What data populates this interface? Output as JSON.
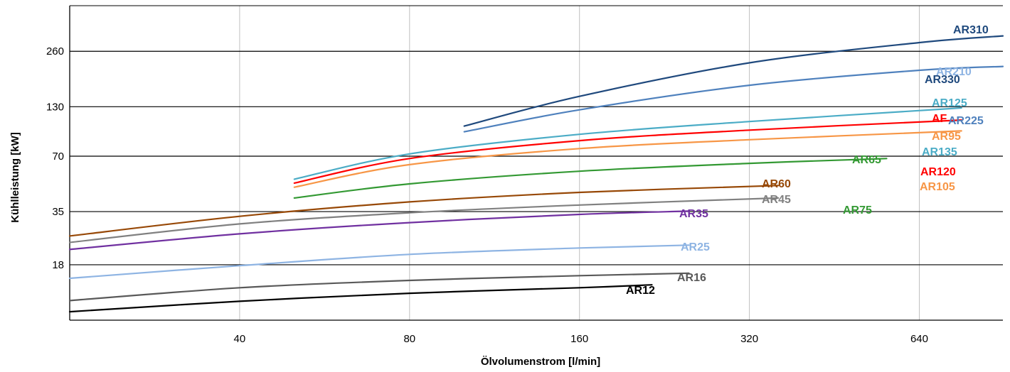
{
  "chart_data": {
    "type": "line",
    "title": "",
    "xlabel": "Ölvolumenstrom [l/min]",
    "ylabel": "Kühlleistung [kW]",
    "x_scale": "log2",
    "y_scale": "log2",
    "xlim": [
      20,
      900
    ],
    "ylim": [
      9,
      460
    ],
    "xticks": [
      40,
      80,
      160,
      320,
      640
    ],
    "yticks": [
      18,
      35,
      70,
      130,
      260
    ],
    "series": [
      {
        "name": "AR12",
        "color": "#000000",
        "x": [
          20,
          40,
          80,
          160,
          215
        ],
        "y": [
          10.0,
          11.4,
          12.6,
          13.5,
          14.0
        ]
      },
      {
        "name": "AR16",
        "color": "#595959",
        "x": [
          20,
          40,
          80,
          160,
          250
        ],
        "y": [
          11.5,
          13.5,
          14.8,
          15.7,
          16.2
        ]
      },
      {
        "name": "AR25",
        "color": "#8EB4E3",
        "x": [
          20,
          40,
          80,
          160,
          250
        ],
        "y": [
          15.2,
          17.8,
          20.5,
          22.2,
          23.0
        ]
      },
      {
        "name": "AR35",
        "color": "#7030A0",
        "x": [
          20,
          40,
          80,
          160,
          250
        ],
        "y": [
          21.8,
          26.5,
          30.5,
          33.8,
          35.2
        ]
      },
      {
        "name": "AR45",
        "color": "#808080",
        "x": [
          20,
          40,
          80,
          160,
          360
        ],
        "y": [
          23.8,
          30.0,
          34.5,
          38.0,
          41.5
        ]
      },
      {
        "name": "AR60",
        "color": "#974806",
        "x": [
          20,
          40,
          80,
          160,
          360
        ],
        "y": [
          25.8,
          33.0,
          39.5,
          44.5,
          48.5
        ]
      },
      {
        "name": "AR65",
        "color": "#339933",
        "x": [
          50,
          80,
          160,
          320,
          560
        ],
        "y": [
          41.5,
          49.5,
          58.0,
          64.0,
          68.0
        ]
      },
      {
        "name": "AR95",
        "color": "#F79646",
        "x": [
          50,
          80,
          160,
          320,
          760
        ],
        "y": [
          47.5,
          63.0,
          77.0,
          86.0,
          96.0
        ]
      },
      {
        "name": "AR120",
        "color": "#FF0000",
        "x": [
          50,
          80,
          160,
          320,
          760
        ],
        "y": [
          50.0,
          68.0,
          85.0,
          97.0,
          110.0
        ]
      },
      {
        "name": "AR125",
        "color": "#4BACC6",
        "x": [
          50,
          80,
          160,
          320,
          760
        ],
        "y": [
          52.5,
          72.0,
          92.0,
          108.0,
          128.0
        ]
      },
      {
        "name": "AR210",
        "color": "#4F81BD",
        "x": [
          100,
          160,
          320,
          640,
          900
        ],
        "y": [
          95.0,
          125.0,
          170.0,
          205.0,
          215.0
        ]
      },
      {
        "name": "AR310",
        "color": "#1F497D",
        "x": [
          100,
          160,
          320,
          640,
          900
        ],
        "y": [
          102.0,
          148.0,
          225.0,
          290.0,
          315.0
        ]
      }
    ],
    "labels": [
      {
        "text": "AR310",
        "color": "#1F497D"
      },
      {
        "text": "AR210",
        "color": "#8EB4E3"
      },
      {
        "text": "AR330",
        "color": "#1F497D"
      },
      {
        "text": "AR125",
        "color": "#4BACC6"
      },
      {
        "text": "AR225",
        "color": "#4F81BD"
      },
      {
        "text": "AR95",
        "color": "#F79646"
      },
      {
        "text": "AR135",
        "color": "#4BACC6"
      },
      {
        "text": "AR65",
        "color": "#339933"
      },
      {
        "text": "AR120",
        "color": "#FF0000"
      },
      {
        "text": "AR105",
        "color": "#F79646"
      },
      {
        "text": "AR60",
        "color": "#974806"
      },
      {
        "text": "AR45",
        "color": "#808080"
      },
      {
        "text": "AR75",
        "color": "#339933"
      },
      {
        "text": "AR35",
        "color": "#7030A0"
      },
      {
        "text": "AR25",
        "color": "#8EB4E3"
      },
      {
        "text": "AR16",
        "color": "#595959"
      },
      {
        "text": "AR12",
        "color": "#000000"
      },
      {
        "text": "AF",
        "color": "#FF0000"
      }
    ],
    "grid": {
      "x": true,
      "y": true
    }
  }
}
